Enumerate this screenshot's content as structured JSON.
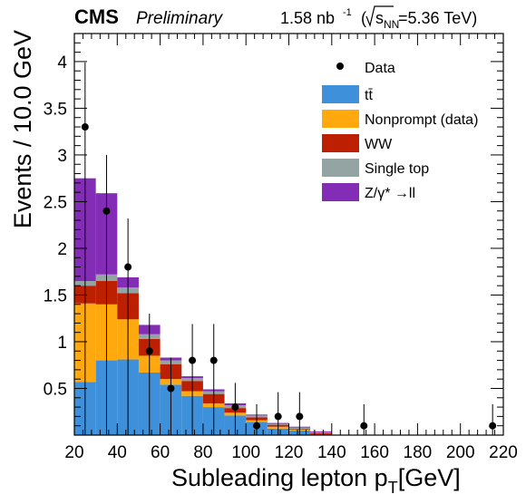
{
  "header": {
    "experiment": "CMS",
    "status": "Preliminary",
    "lumi_value": "1.58 nb",
    "lumi_exponent": "-1",
    "energy_open": "(",
    "energy_sqrt": "s",
    "energy_subscript": "NN",
    "energy_value": "=5.36 TeV)"
  },
  "legend": {
    "data_label": "Data",
    "ttbar_label": "tt̄",
    "nonprompt_label": "Nonprompt (data)",
    "ww_label": "WW",
    "singletop_label": "Single top",
    "dy_label": "Z/γ* →ll"
  },
  "chart_data": {
    "type": "bar",
    "stacked": true,
    "xlabel": "Subleading lepton p_T [GeV]",
    "ylabel": "Events / 10.0 GeV",
    "xlim": [
      20,
      220
    ],
    "ylim": [
      0,
      4.3
    ],
    "bin_edges": [
      20,
      30,
      40,
      50,
      60,
      70,
      80,
      90,
      100,
      110,
      120,
      130,
      140,
      150,
      160,
      170,
      180,
      190,
      200,
      210,
      220
    ],
    "x_ticks": [
      20,
      40,
      60,
      80,
      100,
      120,
      140,
      160,
      180,
      200,
      220
    ],
    "x_tick_labels": [
      "20",
      "40",
      "60",
      "80",
      "100",
      "120",
      "140",
      "160",
      "180",
      "200",
      "220"
    ],
    "y_ticks": [
      0.5,
      1,
      1.5,
      2,
      2.5,
      3,
      3.5,
      4
    ],
    "y_tick_labels": [
      "0.5",
      "1",
      "1.5",
      "2",
      "2.5",
      "3",
      "3.5",
      "4"
    ],
    "series": [
      {
        "name": "tt̄",
        "color": "#3f90da",
        "values": [
          0.57,
          0.8,
          0.81,
          0.67,
          0.54,
          0.42,
          0.3,
          0.21,
          0.14,
          0.07,
          0.05,
          0.01,
          0,
          0,
          0,
          0,
          0,
          0,
          0,
          0
        ]
      },
      {
        "name": "Nonprompt (data)",
        "color": "#ffa90e",
        "values": [
          0.84,
          0.6,
          0.43,
          0.18,
          0.06,
          0.05,
          0.04,
          0.03,
          0.02,
          0.02,
          0.01,
          0,
          0,
          0,
          0,
          0,
          0,
          0,
          0,
          0
        ]
      },
      {
        "name": "WW",
        "color": "#bd1f01",
        "values": [
          0.19,
          0.25,
          0.28,
          0.18,
          0.16,
          0.11,
          0.1,
          0.05,
          0.03,
          0.02,
          0.01,
          0.01,
          0,
          0,
          0,
          0,
          0,
          0,
          0,
          0
        ]
      },
      {
        "name": "Single top",
        "color": "#94a4a2",
        "values": [
          0.05,
          0.07,
          0.06,
          0.05,
          0.04,
          0.03,
          0.03,
          0.03,
          0.02,
          0.01,
          0.01,
          0.01,
          0,
          0,
          0,
          0,
          0,
          0,
          0,
          0
        ]
      },
      {
        "name": "Z/γ* →ll",
        "color": "#832db6",
        "values": [
          1.1,
          0.87,
          0.11,
          0.1,
          0.03,
          0.02,
          0.02,
          0.02,
          0.01,
          0.01,
          0.01,
          0.01,
          0,
          0,
          0,
          0,
          0,
          0,
          0,
          0
        ]
      }
    ],
    "data": {
      "name": "Data",
      "x": [
        25,
        35,
        45,
        55,
        65,
        75,
        85,
        95,
        105,
        115,
        125,
        155,
        215
      ],
      "y": [
        3.3,
        2.4,
        1.8,
        0.9,
        0.5,
        0.8,
        0.8,
        0.3,
        0.1,
        0.2,
        0.2,
        0.1,
        0.1
      ],
      "err_up": [
        0.69,
        0.6,
        0.52,
        0.4,
        0.33,
        0.39,
        0.39,
        0.26,
        0.23,
        0.26,
        0.26,
        0.23,
        0.23
      ],
      "err_down": [
        3.3,
        2.4,
        1.8,
        0.9,
        0.5,
        0.8,
        0.8,
        0.3,
        0.1,
        0.2,
        0.2,
        0.1,
        0.1
      ]
    },
    "legend_position": "top-right",
    "grid": false
  }
}
